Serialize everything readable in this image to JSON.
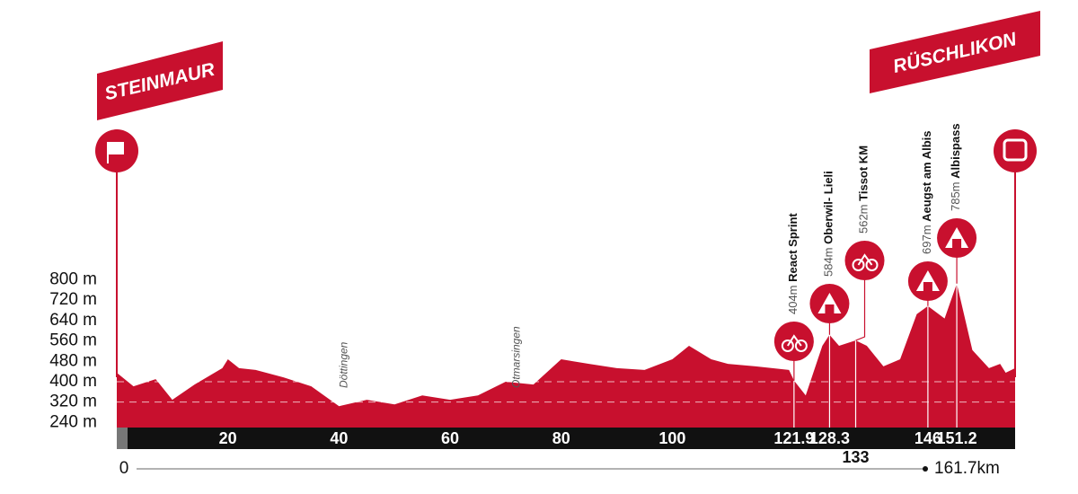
{
  "chart_data": {
    "type": "area",
    "start": "STEINMAUR",
    "finish": "RÜSCHLIKON",
    "x": [
      0,
      3,
      7,
      10,
      14,
      19,
      20,
      22,
      25,
      30,
      35,
      40,
      45,
      50,
      55,
      60,
      65,
      70,
      75,
      80,
      85,
      90,
      95,
      100,
      103,
      107,
      110,
      115,
      121,
      121.9,
      124,
      127,
      128.3,
      130,
      133,
      135,
      138,
      141,
      144,
      146,
      149,
      151.2,
      154,
      157,
      159,
      160,
      161.7
    ],
    "series": [
      {
        "name": "Elevation",
        "color": "#c8102e",
        "values": [
          435,
          382,
          410,
          329,
          389,
          453,
          488,
          453,
          446,
          417,
          382,
          304,
          329,
          311,
          346,
          329,
          346,
          400,
          389,
          488,
          470,
          453,
          446,
          488,
          541,
          488,
          470,
          460,
          446,
          404,
          346,
          541,
          584,
          541,
          562,
          541,
          460,
          488,
          665,
          697,
          648,
          785,
          524,
          453,
          470,
          435,
          453
        ]
      }
    ],
    "xlim": [
      0,
      161.7
    ],
    "xticks": [
      20,
      40,
      60,
      80,
      100
    ],
    "distance_start": 0,
    "distance_end": {
      "value": 161.7,
      "label": "161.7km"
    },
    "ylim": [
      220,
      830
    ],
    "yticks": [
      {
        "value": 240,
        "label": "240 m"
      },
      {
        "value": 320,
        "label": "320 m"
      },
      {
        "value": 400,
        "label": "400 m"
      },
      {
        "value": 480,
        "label": "480 m"
      },
      {
        "value": 560,
        "label": "560 m"
      },
      {
        "value": 640,
        "label": "640 m"
      },
      {
        "value": 720,
        "label": "720 m"
      },
      {
        "value": 800,
        "label": "800 m"
      }
    ],
    "grid_dashed": [
      {
        "value": 320,
        "label": ""
      },
      {
        "value": 400,
        "label": ""
      }
    ],
    "towns": {
      "names": [
        "Döttingen",
        "Otmarsingen"
      ],
      "km": [
        41,
        72
      ]
    },
    "points": {
      "names": [
        "React Sprint",
        "Oberwil- Lieli",
        "Tissot KM",
        "Aeugst am Albis",
        "Albispass"
      ],
      "km": [
        121.9,
        128.3,
        133,
        146,
        151.2
      ],
      "values": [
        404,
        584,
        562,
        697,
        785
      ],
      "value_labels": [
        "404m",
        "584m",
        "562m",
        "697m",
        "785m"
      ]
    }
  }
}
